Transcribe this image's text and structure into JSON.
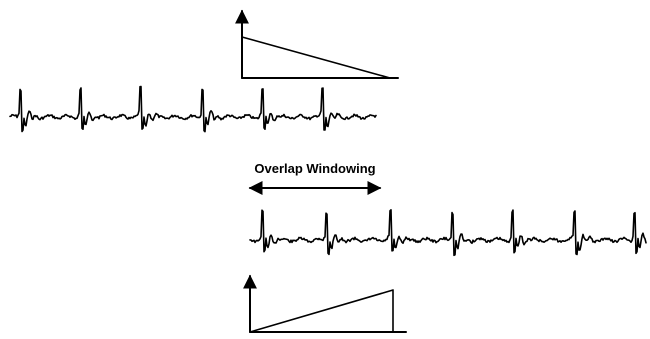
{
  "label": "Overlap Windowing",
  "colors": {
    "ink": "#000000",
    "background": "#ffffff"
  }
}
